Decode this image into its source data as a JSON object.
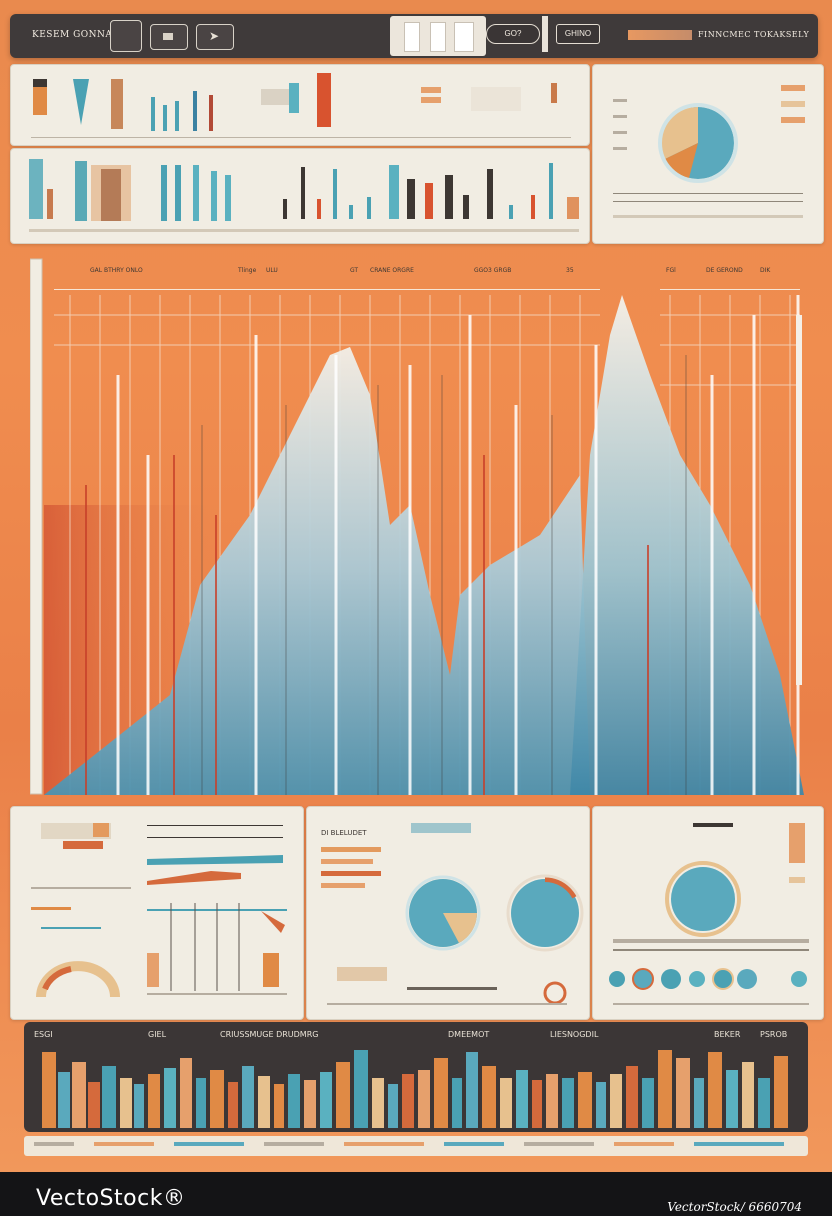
{
  "top_bar": {
    "title": "KESEM GONNA",
    "pill_label": "GO?",
    "button_label": "GHINO",
    "right_label": "FINNCMEC TOKAKSELY"
  },
  "main_chart": {
    "header_labels": [
      "GAL BTHRY ONLO",
      "Tlinge",
      "ULU",
      "GT",
      "CRANE ORGRE",
      "GGO3 GRGB",
      "35",
      "FGl",
      "DE GEROND",
      "DIK"
    ]
  },
  "bottom_panels": {
    "panel_b_title": "DI BLELUDET"
  },
  "bottom_strip": {
    "labels": [
      "ESGI",
      "GIEL",
      "CRIUSSMUGE DRUDMRG",
      "DMEEMOT",
      "LIESNOGDIL",
      "BEKER",
      "PSROB"
    ]
  },
  "footer": {
    "brand": "VectoStock®",
    "right_text": "VectorStock/ 6660704"
  },
  "colors": {
    "background_orange": "#ee8a4e",
    "panel_cream": "#f1ede3",
    "teal": "#5aa9bd",
    "dark": "#3f3a3a"
  }
}
